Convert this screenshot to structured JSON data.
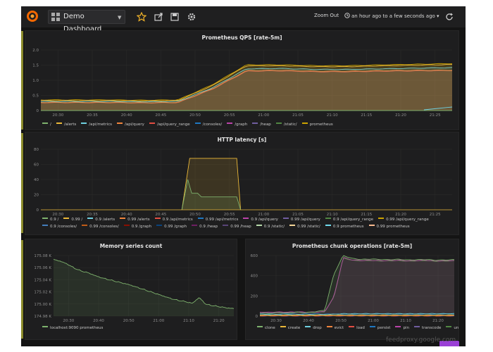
{
  "topbar": {
    "dashboard_title": "Demo Dashboard",
    "zoom_out_label": "Zoom Out",
    "time_range_label": "an hour ago to a few seconds ago",
    "icons": [
      "grafana-logo-icon",
      "dashboard-grid-icon",
      "star-icon",
      "share-icon",
      "save-icon",
      "settings-gear-icon",
      "clock-icon",
      "refresh-icon"
    ]
  },
  "panels": {
    "qps": {
      "title": "Prometheus QPS [rate-5m]"
    },
    "latency": {
      "title": "HTTP latency [s]"
    },
    "memory": {
      "title": "Memory series count"
    },
    "chunk": {
      "title": "Prometheus chunk operations [rate-5m]"
    }
  },
  "footer": {
    "watermark": "feedproxy.google.com"
  },
  "chart_data": [
    {
      "id": "qps",
      "type": "line",
      "title": "Prometheus QPS [rate-5m]",
      "x_ticks": [
        "20:30",
        "20:35",
        "20:40",
        "20:45",
        "20:50",
        "20:55",
        "21:00",
        "21:05",
        "21:10",
        "21:15",
        "21:20",
        "21:25"
      ],
      "y_ticks": [
        "0",
        "0.5",
        "1.0",
        "1.5",
        "2.0"
      ],
      "ylim": [
        0,
        2
      ],
      "legend_position": "bottom",
      "series": [
        {
          "name": "/",
          "color": "#7eb26d",
          "values": [
            0,
            0,
            0,
            0,
            0,
            0,
            0,
            0,
            0,
            0,
            0,
            0,
            0
          ]
        },
        {
          "name": "/alerts",
          "color": "#eab839",
          "values": [
            0.33,
            0.33,
            0.33,
            0.32,
            0.33,
            0.82,
            1.48,
            1.48,
            1.45,
            1.45,
            1.48,
            1.5,
            1.52
          ]
        },
        {
          "name": "/api/metrics",
          "color": "#6ed0e0",
          "values": [
            0.3,
            0.3,
            0.3,
            0.29,
            0.3,
            0.75,
            1.38,
            1.39,
            1.36,
            1.36,
            1.38,
            1.4,
            1.42
          ]
        },
        {
          "name": "/api/query",
          "color": "#ef843c",
          "values": [
            0.27,
            0.27,
            0.27,
            0.26,
            0.27,
            0.72,
            1.32,
            1.33,
            1.3,
            1.3,
            1.32,
            1.33,
            1.33
          ]
        },
        {
          "name": "/api/query_range",
          "color": "#e24d42",
          "values": [
            0.26,
            0.26,
            0.26,
            0.25,
            0.26,
            0.7,
            1.3,
            1.31,
            1.28,
            1.28,
            1.3,
            1.31,
            1.32
          ]
        },
        {
          "name": "/consoles/",
          "color": "#1f78c1",
          "values": [
            0,
            0,
            0,
            0,
            0,
            0,
            0,
            0,
            0,
            0,
            0,
            0,
            0
          ]
        },
        {
          "name": "/graph",
          "color": "#ba43a9",
          "values": [
            0,
            0,
            0,
            0,
            0,
            0,
            0,
            0,
            0,
            0,
            0,
            0,
            0
          ]
        },
        {
          "name": "/heap",
          "color": "#705da0",
          "values": [
            0,
            0,
            0,
            0,
            0,
            0,
            0,
            0,
            0,
            0,
            0,
            0,
            0
          ]
        },
        {
          "name": "/static/",
          "color": "#508642",
          "values": [
            0,
            0,
            0,
            0,
            0,
            0,
            0,
            0,
            0,
            0,
            0,
            0,
            0
          ]
        },
        {
          "name": "prometheus",
          "color": "#cca300",
          "values": [
            0.35,
            0.35,
            0.35,
            0.34,
            0.35,
            0.85,
            1.51,
            1.51,
            1.48,
            1.48,
            1.51,
            1.53,
            1.55
          ]
        }
      ]
    },
    {
      "id": "latency",
      "type": "line",
      "title": "HTTP latency [s]",
      "x_ticks": [
        "20:30",
        "20:35",
        "20:40",
        "20:45",
        "20:50",
        "20:55",
        "21:00",
        "21:05",
        "21:10",
        "21:15",
        "21:20",
        "21:25"
      ],
      "y_ticks": [
        "0",
        "20",
        "40",
        "60",
        "80"
      ],
      "ylim": [
        0,
        80
      ],
      "legend_position": "bottom",
      "series": [
        {
          "name": "0.9 /",
          "color": "#7eb26d"
        },
        {
          "name": "0.99 /",
          "color": "#eab839"
        },
        {
          "name": "0.9 /alerts",
          "color": "#6ed0e0"
        },
        {
          "name": "0.99 /alerts",
          "color": "#ef843c"
        },
        {
          "name": "0.9 /api/metrics",
          "color": "#e24d42"
        },
        {
          "name": "0.99 /api/metrics",
          "color": "#1f78c1"
        },
        {
          "name": "0.9 /api/query",
          "color": "#ba43a9"
        },
        {
          "name": "0.99 /api/query",
          "color": "#705da0"
        },
        {
          "name": "0.9 /api/query_range",
          "color": "#508642"
        },
        {
          "name": "0.99 /api/query_range",
          "color": "#cca300"
        },
        {
          "name": "0.9 /consoles/",
          "color": "#447ebc"
        },
        {
          "name": "0.99 /consoles/",
          "color": "#c15c17"
        },
        {
          "name": "0.9 /graph",
          "color": "#890f02"
        },
        {
          "name": "0.99 /graph",
          "color": "#0a437c"
        },
        {
          "name": "0.9 /heap",
          "color": "#6d1f62"
        },
        {
          "name": "0.99 /heap",
          "color": "#584477"
        },
        {
          "name": "0.9 /static/",
          "color": "#b7dbab"
        },
        {
          "name": "0.99 /static/",
          "color": "#f4d598"
        },
        {
          "name": "0.9 prometheus",
          "color": "#70dbed"
        },
        {
          "name": "0.99 prometheus",
          "color": "#f9ba8f"
        }
      ],
      "peaks": [
        {
          "series": "0.99 /",
          "points": [
            [
              20.86,
              0
            ],
            [
              20.88,
              68
            ],
            [
              21.0,
              68
            ],
            [
              21.01,
              0
            ]
          ]
        },
        {
          "series": "0.9 /",
          "points": [
            [
              20.86,
              0
            ],
            [
              20.875,
              40
            ],
            [
              20.885,
              22
            ],
            [
              20.9,
              22
            ],
            [
              20.91,
              17
            ],
            [
              21.0,
              17
            ],
            [
              21.01,
              0
            ]
          ]
        }
      ]
    },
    {
      "id": "memory",
      "type": "line",
      "title": "Memory series count",
      "x_ticks": [
        "20:30",
        "20:40",
        "20:50",
        "21:00",
        "21:10",
        "21:20"
      ],
      "y_ticks": [
        "174.98 K",
        "175.00 K",
        "175.02 K",
        "175.04 K",
        "175.06 K",
        "175.08 K"
      ],
      "ylim": [
        174.98,
        175.085
      ],
      "legend_position": "bottom",
      "series": [
        {
          "name": "localhost:9090 prometheus",
          "color": "#7eb26d",
          "values": [
            175.078,
            175.075,
            175.07,
            175.063,
            175.058,
            175.055,
            175.05,
            175.046,
            175.043,
            175.04,
            175.037,
            175.034,
            175.03,
            175.026,
            175.022,
            175.018,
            175.014,
            175.01,
            175.007,
            175.005,
            175.002,
            175.012,
            175.0,
            174.998,
            174.996,
            174.994,
            174.993
          ]
        }
      ]
    },
    {
      "id": "chunk",
      "type": "line",
      "title": "Prometheus chunk operations [rate-5m]",
      "x_ticks": [
        "20:30",
        "20:40",
        "20:50",
        "21:00",
        "21:10",
        "21:20"
      ],
      "y_ticks": [
        "0",
        "200",
        "400",
        "600"
      ],
      "ylim": [
        0,
        620
      ],
      "legend_position": "bottom",
      "series": [
        {
          "name": "clone",
          "color": "#7eb26d",
          "values": [
            30,
            28,
            35,
            30,
            40,
            35,
            45,
            60,
            430,
            620,
            590,
            580,
            585,
            580,
            578,
            582,
            575,
            578,
            580,
            572,
            575,
            578
          ]
        },
        {
          "name": "create",
          "color": "#eab839",
          "values": [
            10,
            10,
            10,
            10,
            10,
            10,
            10,
            10,
            10,
            10,
            10,
            10,
            10,
            10,
            10,
            10,
            10,
            10,
            10,
            10,
            10,
            10
          ]
        },
        {
          "name": "drop",
          "color": "#6ed0e0",
          "values": [
            15,
            15,
            15,
            15,
            15,
            15,
            15,
            15,
            20,
            25,
            25,
            25,
            25,
            25,
            25,
            25,
            25,
            25,
            25,
            25,
            25,
            25
          ]
        },
        {
          "name": "evict",
          "color": "#ef843c",
          "values": [
            5,
            5,
            5,
            5,
            5,
            5,
            5,
            5,
            5,
            5,
            5,
            5,
            5,
            5,
            5,
            5,
            5,
            5,
            5,
            5,
            5,
            5
          ]
        },
        {
          "name": "load",
          "color": "#e24d42",
          "values": [
            3,
            3,
            3,
            3,
            3,
            3,
            3,
            3,
            3,
            3,
            3,
            3,
            3,
            3,
            3,
            3,
            3,
            3,
            3,
            3,
            3,
            3
          ]
        },
        {
          "name": "persist",
          "color": "#1f78c1",
          "values": [
            20,
            22,
            18,
            25,
            20,
            22,
            24,
            20,
            22,
            18,
            20,
            22,
            20,
            24,
            20,
            22,
            18,
            20,
            22,
            20,
            24,
            22
          ]
        },
        {
          "name": "pin",
          "color": "#ba43a9",
          "values": [
            40,
            38,
            42,
            40,
            44,
            40,
            42,
            45,
            200,
            600,
            575,
            570,
            572,
            568,
            570,
            572,
            566,
            570,
            572,
            565,
            568,
            570
          ]
        },
        {
          "name": "transcode",
          "color": "#705da0",
          "values": [
            2,
            2,
            2,
            2,
            2,
            2,
            2,
            2,
            2,
            2,
            2,
            2,
            2,
            2,
            2,
            2,
            2,
            2,
            2,
            2,
            2,
            2
          ]
        },
        {
          "name": "unpin",
          "color": "#508642",
          "values": [
            38,
            36,
            40,
            38,
            42,
            38,
            40,
            43,
            195,
            595,
            570,
            566,
            568,
            564,
            566,
            568,
            562,
            566,
            568,
            561,
            564,
            566
          ]
        }
      ]
    }
  ],
  "colors": {
    "background": "#141414",
    "panel": "#1e1e1f",
    "axis_text": "#8e8e8e",
    "grid": "#2c2c2c"
  }
}
